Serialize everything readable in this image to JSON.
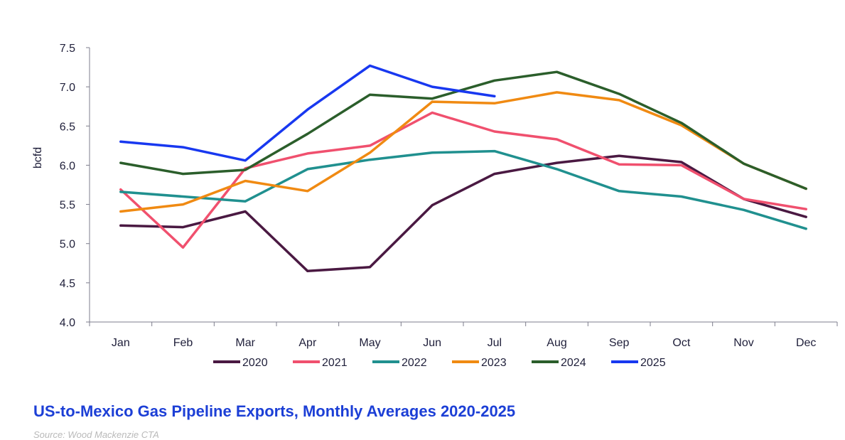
{
  "chart_data": {
    "type": "line",
    "title": "US-to-Mexico Gas Pipeline Exports, Monthly Averages 2020-2025",
    "source": "Source: Wood Mackenzie CTA",
    "xlabel": "",
    "ylabel": "bcfd",
    "ylim": [
      4.0,
      7.5
    ],
    "yticks": [
      "4.0",
      "4.5",
      "5.0",
      "5.5",
      "6.0",
      "6.5",
      "7.0",
      "7.5"
    ],
    "categories": [
      "Jan",
      "Feb",
      "Mar",
      "Apr",
      "May",
      "Jun",
      "Jul",
      "Aug",
      "Sep",
      "Oct",
      "Nov",
      "Dec"
    ],
    "legend_position": "bottom",
    "series": [
      {
        "name": "2020",
        "color": "#4a1942",
        "values": [
          5.23,
          5.21,
          5.41,
          4.65,
          4.7,
          5.49,
          5.89,
          6.03,
          6.12,
          6.04,
          5.57,
          5.34
        ]
      },
      {
        "name": "2021",
        "color": "#f0506e",
        "values": [
          5.69,
          4.95,
          5.96,
          6.15,
          6.25,
          6.67,
          6.43,
          6.33,
          6.01,
          6.0,
          5.57,
          5.44
        ]
      },
      {
        "name": "2022",
        "color": "#20908f",
        "values": [
          5.66,
          5.6,
          5.54,
          5.95,
          6.07,
          6.16,
          6.18,
          5.95,
          5.67,
          5.6,
          5.43,
          5.19
        ]
      },
      {
        "name": "2023",
        "color": "#f08a12",
        "values": [
          5.41,
          5.5,
          5.8,
          5.67,
          6.16,
          6.81,
          6.79,
          6.93,
          6.83,
          6.51,
          6.02,
          5.7
        ]
      },
      {
        "name": "2024",
        "color": "#2b5e2b",
        "values": [
          6.03,
          5.89,
          5.94,
          6.4,
          6.9,
          6.85,
          7.08,
          7.19,
          6.91,
          6.54,
          6.02,
          5.7
        ]
      },
      {
        "name": "2025",
        "color": "#1838f0",
        "values": [
          6.3,
          6.23,
          6.06,
          6.71,
          7.27,
          7.0,
          6.88,
          null,
          null,
          null,
          null,
          null
        ]
      }
    ]
  }
}
